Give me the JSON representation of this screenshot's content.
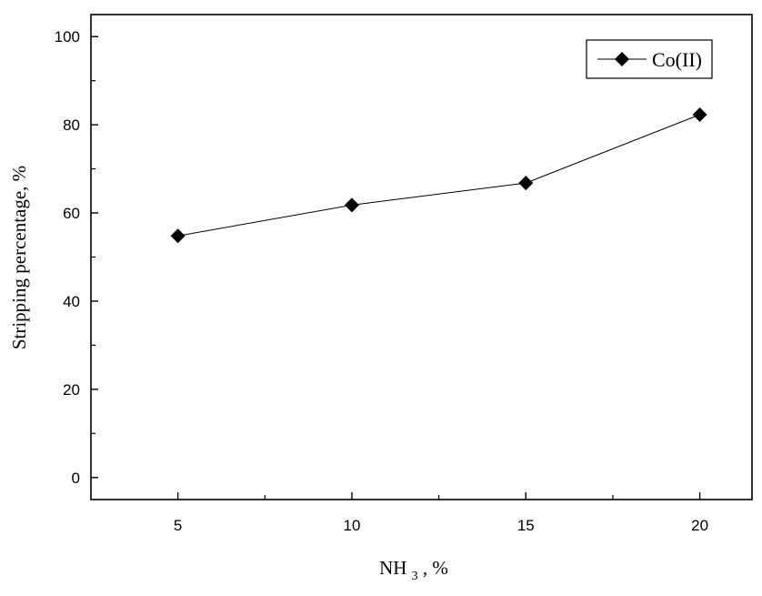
{
  "chart_data": {
    "type": "line",
    "title": "",
    "xlabel": "NH",
    "xlabel_subscript": "3",
    "xlabel_suffix": ", %",
    "ylabel": "Stripping percentage, %",
    "xlim": [
      2.5,
      21.5
    ],
    "ylim": [
      -5,
      105
    ],
    "x_ticks": [
      5,
      10,
      15,
      20
    ],
    "x_tick_labels": [
      "5",
      "10",
      "15",
      "20"
    ],
    "x_minor_ticks": [
      7.5,
      12.5,
      17.5
    ],
    "y_ticks": [
      0,
      20,
      40,
      60,
      80,
      100
    ],
    "y_tick_labels": [
      "0",
      "20",
      "40",
      "60",
      "80",
      "100"
    ],
    "y_minor_ticks": [
      10,
      30,
      50,
      70,
      90
    ],
    "grid": false,
    "legend_position": "top-right",
    "marker": "diamond",
    "series": [
      {
        "name": "Co(II)",
        "color": "#000000",
        "x": [
          5,
          10,
          15,
          20
        ],
        "values": [
          54.8,
          61.8,
          66.8,
          82.3
        ]
      }
    ]
  }
}
